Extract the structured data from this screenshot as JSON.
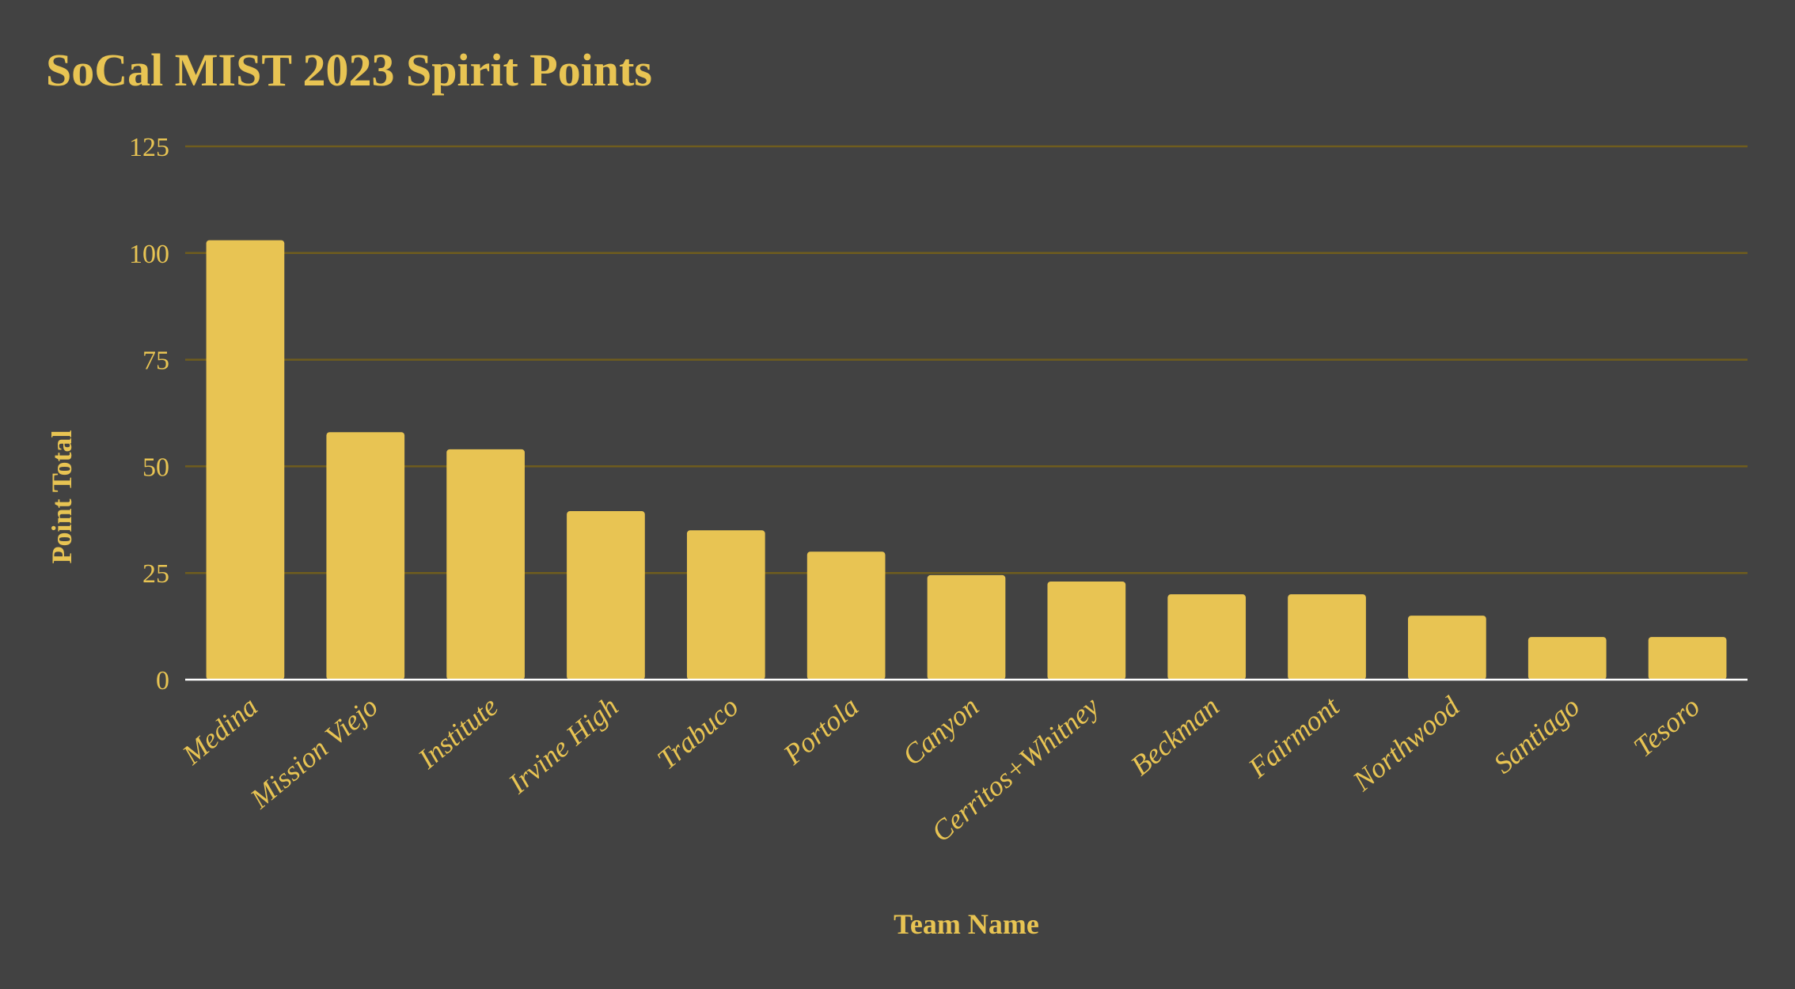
{
  "colors": {
    "background": "#424242",
    "bar": "#E8C453",
    "text": "#E8C453",
    "gridline": "#6F5D1E",
    "baseline": "#FFFFFF"
  },
  "chart_data": {
    "type": "bar",
    "title": "SoCal MIST 2023 Spirit Points",
    "xlabel": "Team Name",
    "ylabel": "Point Total",
    "categories": [
      "Medina",
      "Mission Viejo",
      "Institute",
      "Irvine High",
      "Trabuco",
      "Portola",
      "Canyon",
      "Cerritos+Whitney",
      "Beckman",
      "Fairmont",
      "Northwood",
      "Santiago",
      "Tesoro"
    ],
    "values": [
      103,
      58,
      54,
      39.5,
      35,
      30,
      24.5,
      23,
      20,
      20,
      15,
      10,
      10
    ],
    "ylim": [
      0,
      125
    ],
    "yticks": [
      "0",
      "25",
      "50",
      "75",
      "100",
      "125"
    ],
    "grid": true,
    "legend": "none"
  }
}
